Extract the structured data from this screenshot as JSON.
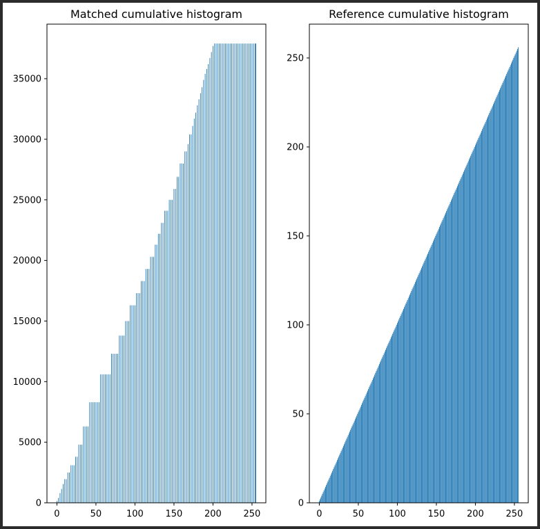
{
  "chart_data": [
    {
      "type": "bar",
      "title": "Matched cumulative histogram",
      "xlabel": "",
      "ylabel": "",
      "xlim": [
        -12.75,
        267.75
      ],
      "ylim": [
        0,
        39500
      ],
      "xticks": [
        0,
        50,
        100,
        150,
        200,
        250
      ],
      "yticks": [
        0,
        5000,
        10000,
        15000,
        20000,
        25000,
        30000,
        35000
      ],
      "bar_color": "#1f77b4",
      "grid": false,
      "x": [
        0,
        2,
        4,
        6,
        8,
        10,
        12,
        14,
        16,
        18,
        20,
        22,
        24,
        26,
        28,
        30,
        32,
        34,
        36,
        38,
        40,
        42,
        44,
        46,
        48,
        50,
        52,
        54,
        56,
        58,
        60,
        62,
        64,
        66,
        68,
        70,
        72,
        74,
        76,
        78,
        80,
        82,
        84,
        86,
        88,
        90,
        92,
        94,
        96,
        98,
        100,
        102,
        104,
        106,
        108,
        110,
        112,
        114,
        116,
        118,
        120,
        122,
        124,
        126,
        128,
        130,
        132,
        134,
        136,
        138,
        140,
        142,
        144,
        146,
        148,
        150,
        152,
        154,
        156,
        158,
        160,
        162,
        164,
        166,
        168,
        170,
        172,
        174,
        176,
        178,
        180,
        182,
        184,
        186,
        188,
        190,
        192,
        194,
        196,
        198,
        200,
        202,
        204,
        206,
        208,
        210,
        212,
        214,
        216,
        218,
        220,
        222,
        224,
        226,
        228,
        230,
        232,
        234,
        236,
        238,
        240,
        242,
        244,
        246,
        248,
        250,
        252,
        254,
        255
      ],
      "values": [
        150,
        400,
        800,
        1150,
        1550,
        1950,
        1950,
        2500,
        2500,
        3100,
        3100,
        3100,
        3800,
        3800,
        4800,
        4800,
        4800,
        6300,
        6300,
        6300,
        6300,
        8300,
        8300,
        8300,
        8300,
        8300,
        8300,
        8300,
        10600,
        10600,
        10600,
        10600,
        10600,
        10600,
        10600,
        12300,
        12300,
        12300,
        12300,
        12300,
        13800,
        13800,
        13800,
        13800,
        15000,
        15000,
        15000,
        16300,
        16300,
        16300,
        16300,
        17300,
        17300,
        17300,
        18300,
        18300,
        18300,
        19300,
        19300,
        19300,
        20300,
        20300,
        20300,
        21300,
        21300,
        22200,
        22200,
        23100,
        23100,
        24100,
        24100,
        24100,
        25000,
        25000,
        25000,
        25900,
        25900,
        26900,
        26900,
        28000,
        28000,
        28000,
        29000,
        29000,
        29600,
        30400,
        30400,
        31100,
        31700,
        32200,
        32800,
        33300,
        33800,
        34300,
        34900,
        35400,
        35800,
        36200,
        36700,
        37200,
        37700,
        37900,
        37900,
        37900,
        37900,
        37900,
        37900,
        37900,
        37900,
        37900,
        37900,
        37900,
        37900,
        37900,
        37900,
        37900,
        37900,
        37900,
        37900,
        37900,
        37900,
        37900,
        37900,
        37900,
        37900,
        37900,
        37900,
        37900,
        37900
      ]
    },
    {
      "type": "bar",
      "title": "Reference cumulative histogram",
      "xlabel": "",
      "ylabel": "",
      "xlim": [
        -12.75,
        267.75
      ],
      "ylim": [
        0,
        269
      ],
      "xticks": [
        0,
        50,
        100,
        150,
        200,
        250
      ],
      "yticks": [
        0,
        50,
        100,
        150,
        200,
        250
      ],
      "bar_color": "#1f77b4",
      "grid": false,
      "series_rule": "value = index + 1, for index 0..255",
      "n": 256
    }
  ]
}
